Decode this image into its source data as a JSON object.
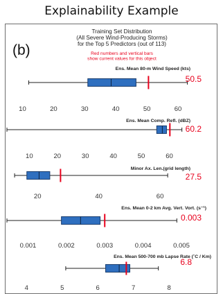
{
  "page_title": "Explainability Example",
  "panel_label": "(b)",
  "chart_title_lines": [
    "Training Set Distribution",
    "(All Severe Wind-Producing Storms)",
    "for the Top 5 Predictors (out of 113)"
  ],
  "note_lines": [
    "Red numbers and vertical bars",
    "show current values for this object"
  ],
  "colors": {
    "box": "#2f6fbf",
    "box_edge": "#1a3d6e",
    "current": "#e8001c",
    "text": "#222222"
  },
  "chart_data": {
    "type": "box",
    "title": "Training Set Distribution (All Severe Wind-Producing Storms) for the Top 5 Predictors (out of 113)",
    "panels": [
      {
        "label": "Ens. Mean 80-m Wind Speed  (kts)",
        "xlim": [
          5,
          68
        ],
        "ticks": [
          "10",
          "20",
          "30",
          "40",
          "50",
          "60"
        ],
        "tick_values": [
          10,
          20,
          30,
          40,
          50,
          60
        ],
        "whisker_low": 12,
        "q1": 31,
        "median": 38.5,
        "q3": 46.5,
        "whisker_high": 63,
        "current": 50.5,
        "current_label": "50.5"
      },
      {
        "label": "Ens. Mean Comp. Refl.  (dBZ)",
        "xlim": [
          2,
          72
        ],
        "ticks": [
          "10",
          "20",
          "30",
          "40",
          "50",
          "60"
        ],
        "tick_values": [
          10,
          20,
          30,
          40,
          50,
          60
        ],
        "whisker_low": 2,
        "q1": 55.5,
        "median": 57.5,
        "q3": 59,
        "whisker_high": 64.5,
        "current": 60.2,
        "current_label": "60.2"
      },
      {
        "label": "Minor Ax. Len.(grid length)",
        "xlim": [
          10,
          74
        ],
        "ticks": [
          "20",
          "40",
          "60"
        ],
        "tick_values": [
          20,
          40,
          60
        ],
        "whisker_low": 12.5,
        "q1": 16.5,
        "median": 20.5,
        "q3": 24,
        "whisker_high": 62.5,
        "current": 27.5,
        "current_label": "27.5"
      },
      {
        "label": "Ens. Mean 0-2 km Avg. Vert. Vort.  (s⁻¹)",
        "xlim": [
          0.00045,
          0.00556
        ],
        "ticks": [
          "0.001",
          "0.002",
          "0.003",
          "0.004",
          "0.005"
        ],
        "tick_values": [
          0.001,
          0.002,
          0.003,
          0.004,
          0.005
        ],
        "whisker_low": 0.00045,
        "q1": 0.00187,
        "median": 0.00237,
        "q3": 0.00288,
        "whisker_high": 0.00488,
        "current": 0.003,
        "current_label": "0.003"
      },
      {
        "label": "Ens. Mean 500-700 mb Lapse Rate  (˚C / Km)",
        "xlim": [
          3.45,
          8.95
        ],
        "ticks": [
          "4",
          "5",
          "6",
          "7",
          "8"
        ],
        "tick_values": [
          4,
          5,
          6,
          7,
          8
        ],
        "whisker_low": 5.1,
        "q1": 6.22,
        "median": 6.6,
        "q3": 6.9,
        "whisker_high": 7.7,
        "current": 6.8,
        "current_label": "6.8"
      }
    ]
  }
}
